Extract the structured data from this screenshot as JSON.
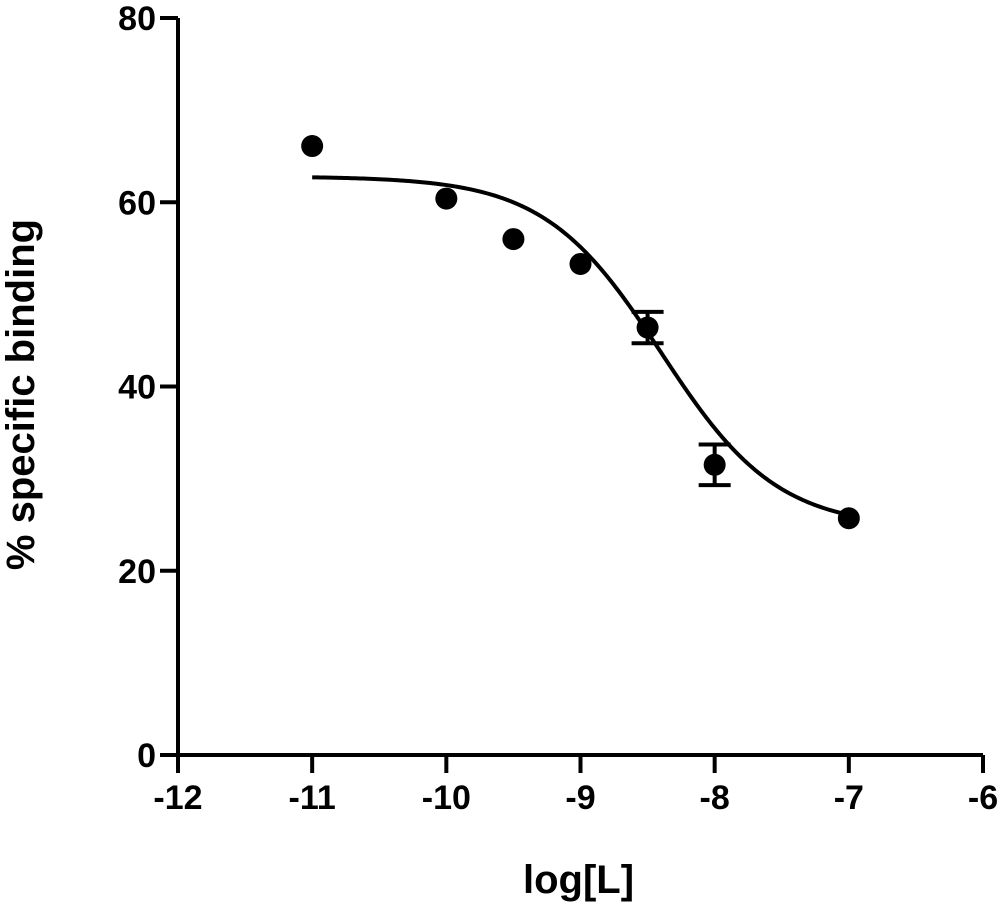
{
  "chart_data": {
    "type": "scatter",
    "title": "",
    "xlabel": "log[L]",
    "ylabel": "%  specific binding",
    "xlim": [
      -12,
      -6
    ],
    "ylim": [
      0,
      80
    ],
    "x_ticks": [
      -12,
      -11,
      -10,
      -9,
      -8,
      -7,
      -6
    ],
    "y_ticks": [
      0,
      20,
      40,
      60,
      80
    ],
    "x_tick_labels": [
      "-12",
      "-11",
      "-10",
      "-9",
      "-8",
      "-7",
      "-6"
    ],
    "y_tick_labels": [
      "0",
      "20",
      "40",
      "60",
      "80"
    ],
    "grid": false,
    "legend": "none",
    "series": [
      {
        "points": [
          {
            "x": -11,
            "y": 66.1,
            "err": 0
          },
          {
            "x": -10,
            "y": 60.4,
            "err": 0
          },
          {
            "x": -9.5,
            "y": 56.0,
            "err": 0
          },
          {
            "x": -9,
            "y": 53.3,
            "err": 0
          },
          {
            "x": -8.5,
            "y": 46.4,
            "err": 1.7
          },
          {
            "x": -8,
            "y": 31.5,
            "err": 2.2
          },
          {
            "x": -7,
            "y": 25.7,
            "err": 0
          }
        ]
      }
    ],
    "fit": {
      "model": "sigmoidal dose-response",
      "top": 62.8,
      "bottom": 24.6,
      "logEC50": -8.4,
      "hill": -1,
      "x_range": [
        -11,
        -7
      ]
    }
  }
}
